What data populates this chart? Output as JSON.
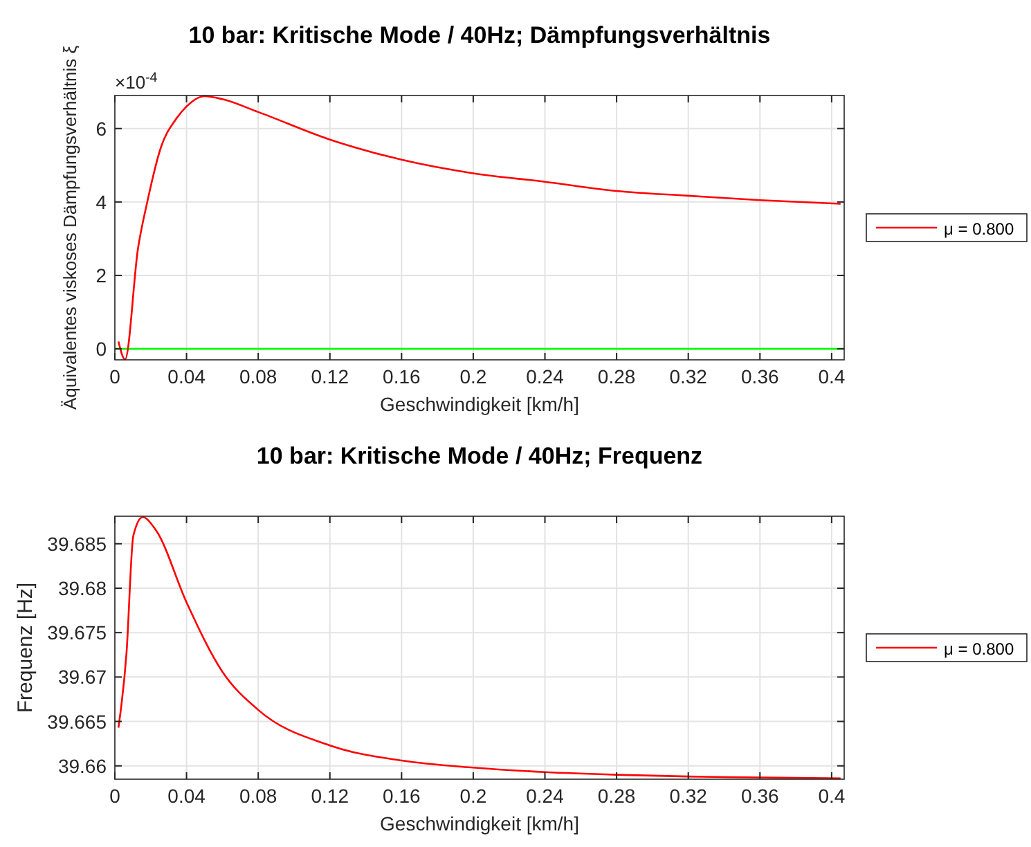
{
  "chart_data": [
    {
      "type": "line",
      "title": "10 bar: Kritische Mode / 40Hz; Dämpfungsverhältnis",
      "xlabel": "Geschwindigkeit [km/h]",
      "ylabel": "Äquivalentes viskoses Dämpfungsverhältnis ξ",
      "annotations": [
        "×10$^{-4}$"
      ],
      "series": [
        {
          "name": "μ = 0.800",
          "color": "#ff0000",
          "x": [
            0.002,
            0.0057,
            0.0129,
            0.018,
            0.0258,
            0.034,
            0.04,
            0.05,
            0.06,
            0.08,
            0.12,
            0.16,
            0.2,
            0.24,
            0.28,
            0.32,
            0.36,
            0.405
          ],
          "values": [
            0.2,
            -0.29,
            2.73,
            3.98,
            5.5,
            6.25,
            6.6,
            6.88,
            6.8,
            6.45,
            5.7,
            5.15,
            4.78,
            4.55,
            4.3,
            4.17,
            4.05,
            3.95
          ]
        }
      ],
      "ref_lines": [
        {
          "axis": "y",
          "value": 0,
          "color": "#00ff00"
        }
      ],
      "xlim": [
        0,
        0.407
      ],
      "xticks": [
        0,
        0.04,
        0.08,
        0.12,
        0.16,
        0.2,
        0.24,
        0.28,
        0.32,
        0.36,
        0.4
      ],
      "ylim": [
        -0.3,
        6.9
      ],
      "yticks": [
        0,
        2,
        4,
        6
      ],
      "grid": true,
      "legend": "right"
    },
    {
      "type": "line",
      "title": "10 bar: Kritische Mode / 40Hz; Frequenz",
      "xlabel": "Geschwindigkeit [km/h]",
      "ylabel": "Frequenz [Hz]",
      "series": [
        {
          "name": "μ = 0.800",
          "color": "#ff0000",
          "x": [
            0.002,
            0.0065,
            0.0103,
            0.0155,
            0.023,
            0.04,
            0.06,
            0.08,
            0.12,
            0.16,
            0.2,
            0.24,
            0.28,
            0.32,
            0.36,
            0.405
          ],
          "values": [
            39.6643,
            39.6727,
            39.6859,
            39.688,
            39.6865,
            39.6784,
            39.6706,
            39.6663,
            39.6623,
            39.6606,
            39.6598,
            39.6593,
            39.659,
            39.6588,
            39.6587,
            39.6586
          ]
        }
      ],
      "xlim": [
        0,
        0.407
      ],
      "xticks": [
        0,
        0.04,
        0.08,
        0.12,
        0.16,
        0.2,
        0.24,
        0.28,
        0.32,
        0.36,
        0.4
      ],
      "ylim": [
        39.6585,
        39.6881
      ],
      "yticks": [
        39.66,
        39.665,
        39.67,
        39.675,
        39.68,
        39.685
      ],
      "grid": true,
      "legend": "right"
    }
  ]
}
